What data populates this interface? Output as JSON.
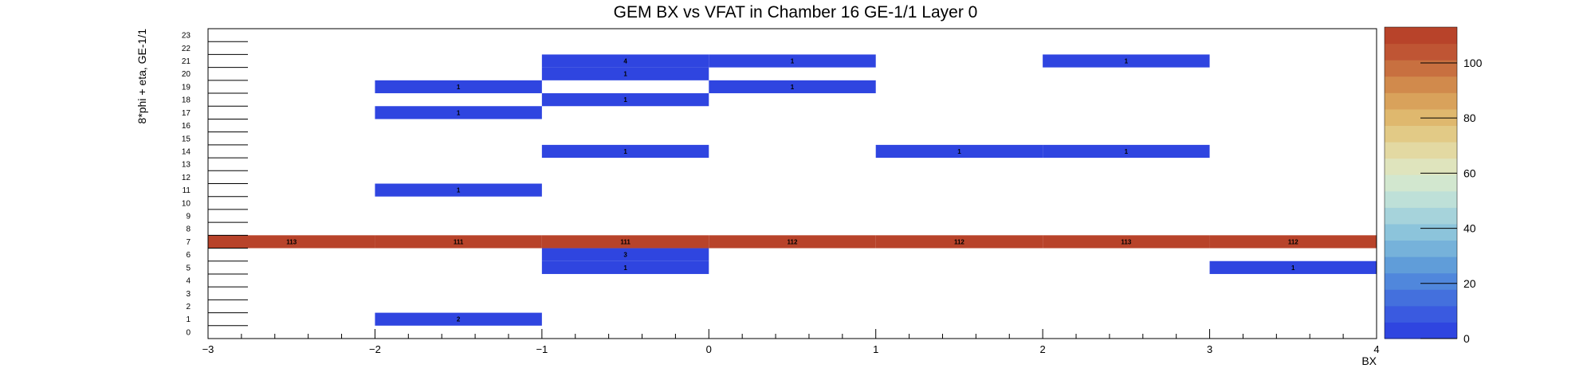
{
  "chart_data": {
    "type": "heatmap",
    "title": "GEM BX vs VFAT in Chamber 16 GE-1/1 Layer 0",
    "xlabel": "BX",
    "ylabel": "8*phi + eta, GE-1/1",
    "xlim": [
      -3,
      4
    ],
    "ylim": [
      0,
      24
    ],
    "x_ticks": [
      "−3",
      "−2",
      "−1",
      "0",
      "1",
      "2",
      "3",
      "4"
    ],
    "y_ticks": [
      "0",
      "1",
      "2",
      "3",
      "4",
      "5",
      "6",
      "7",
      "8",
      "9",
      "10",
      "11",
      "12",
      "13",
      "14",
      "15",
      "16",
      "17",
      "18",
      "19",
      "20",
      "21",
      "22",
      "23"
    ],
    "z_range": [
      0,
      113
    ],
    "palette_ticks": [
      "0",
      "20",
      "40",
      "60",
      "80",
      "100"
    ],
    "palette_tick_values": [
      0,
      20,
      40,
      60,
      80,
      100
    ],
    "cells": [
      {
        "x0": -3,
        "x1": -2,
        "y": 7,
        "value": 113
      },
      {
        "x0": -2,
        "x1": -1,
        "y": 7,
        "value": 111
      },
      {
        "x0": -1,
        "x1": 0,
        "y": 7,
        "value": 111
      },
      {
        "x0": 0,
        "x1": 1,
        "y": 7,
        "value": 112
      },
      {
        "x0": 1,
        "x1": 2,
        "y": 7,
        "value": 112
      },
      {
        "x0": 2,
        "x1": 3,
        "y": 7,
        "value": 113
      },
      {
        "x0": 3,
        "x1": 4,
        "y": 7,
        "value": 112
      },
      {
        "x0": -1,
        "x1": 0,
        "y": 21,
        "value": 4
      },
      {
        "x0": 0,
        "x1": 1,
        "y": 21,
        "value": 1
      },
      {
        "x0": 2,
        "x1": 3,
        "y": 21,
        "value": 1
      },
      {
        "x0": -1,
        "x1": 0,
        "y": 20,
        "value": 1
      },
      {
        "x0": -2,
        "x1": -1,
        "y": 19,
        "value": 1
      },
      {
        "x0": 0,
        "x1": 1,
        "y": 19,
        "value": 1
      },
      {
        "x0": -1,
        "x1": 0,
        "y": 18,
        "value": 1
      },
      {
        "x0": -2,
        "x1": -1,
        "y": 17,
        "value": 1
      },
      {
        "x0": -1,
        "x1": 0,
        "y": 14,
        "value": 1
      },
      {
        "x0": 1,
        "x1": 2,
        "y": 14,
        "value": 1
      },
      {
        "x0": 2,
        "x1": 3,
        "y": 14,
        "value": 1
      },
      {
        "x0": -2,
        "x1": -1,
        "y": 11,
        "value": 1
      },
      {
        "x0": -1,
        "x1": 0,
        "y": 6,
        "value": 3
      },
      {
        "x0": -1,
        "x1": 0,
        "y": 5,
        "value": 1
      },
      {
        "x0": 3,
        "x1": 4,
        "y": 5,
        "value": 1
      },
      {
        "x0": -2,
        "x1": -1,
        "y": 1,
        "value": 2
      }
    ],
    "palette_colors": [
      "#2f45e0",
      "#3a5ae0",
      "#4470dd",
      "#5087dc",
      "#609dd9",
      "#76b2da",
      "#8cc4db",
      "#a6d3db",
      "#bee0d8",
      "#d2e7cf",
      "#dfe4bd",
      "#e3d9a2",
      "#e2ca86",
      "#dfb86e",
      "#d9a25b",
      "#d18a4c",
      "#c87040",
      "#bf5534",
      "#b8432a"
    ],
    "grid": false,
    "legend": "color palette on right"
  }
}
